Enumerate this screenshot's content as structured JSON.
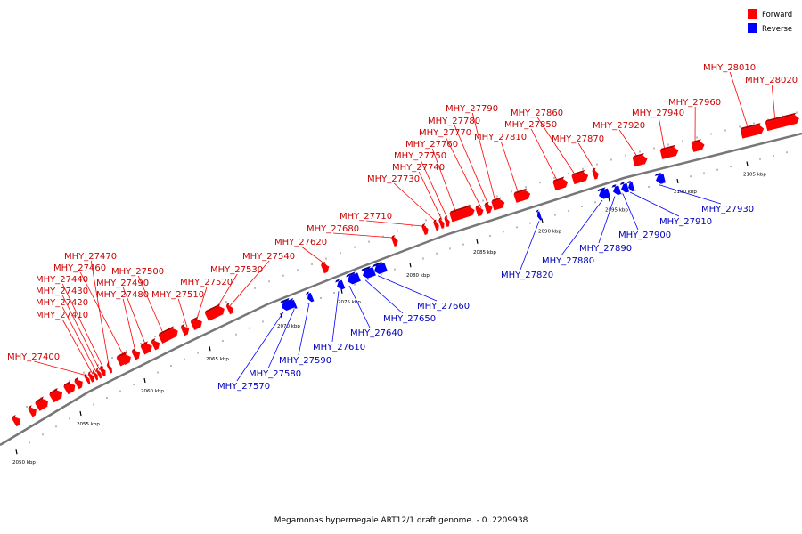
{
  "legend": [
    {
      "label": "Forward",
      "color": "#ff0000"
    },
    {
      "label": "Reverse",
      "color": "#0000ff"
    }
  ],
  "caption": "Megamonas hypermegale ART12/1 draft genome. - 0..2209938",
  "colors": {
    "forward": "#ff0000",
    "reverse": "#0000ff",
    "backbone": "#777777",
    "forward_label": "#cc0000",
    "reverse_label": "#0000bb"
  },
  "scale": {
    "unit": "kbp",
    "major_ticks": [
      2050,
      2055,
      2060,
      2065,
      2070,
      2075,
      2080,
      2085,
      2090,
      2095,
      2100,
      2105
    ]
  },
  "genes": [
    {
      "id": "MHY_27400",
      "strand": "forward"
    },
    {
      "id": "MHY_27410",
      "strand": "forward"
    },
    {
      "id": "MHY_27420",
      "strand": "forward"
    },
    {
      "id": "MHY_27430",
      "strand": "forward"
    },
    {
      "id": "MHY_27440",
      "strand": "forward"
    },
    {
      "id": "MHY_27460",
      "strand": "forward"
    },
    {
      "id": "MHY_27470",
      "strand": "forward"
    },
    {
      "id": "MHY_27480",
      "strand": "forward"
    },
    {
      "id": "MHY_27490",
      "strand": "forward"
    },
    {
      "id": "MHY_27500",
      "strand": "forward"
    },
    {
      "id": "MHY_27510",
      "strand": "forward"
    },
    {
      "id": "MHY_27520",
      "strand": "forward"
    },
    {
      "id": "MHY_27530",
      "strand": "forward"
    },
    {
      "id": "MHY_27540",
      "strand": "forward"
    },
    {
      "id": "MHY_27570",
      "strand": "reverse"
    },
    {
      "id": "MHY_27580",
      "strand": "reverse"
    },
    {
      "id": "MHY_27590",
      "strand": "reverse"
    },
    {
      "id": "MHY_27610",
      "strand": "reverse"
    },
    {
      "id": "MHY_27620",
      "strand": "forward"
    },
    {
      "id": "MHY_27640",
      "strand": "reverse"
    },
    {
      "id": "MHY_27650",
      "strand": "reverse"
    },
    {
      "id": "MHY_27660",
      "strand": "reverse"
    },
    {
      "id": "MHY_27680",
      "strand": "forward"
    },
    {
      "id": "MHY_27710",
      "strand": "forward"
    },
    {
      "id": "MHY_27730",
      "strand": "forward"
    },
    {
      "id": "MHY_27740",
      "strand": "forward"
    },
    {
      "id": "MHY_27750",
      "strand": "forward"
    },
    {
      "id": "MHY_27760",
      "strand": "forward"
    },
    {
      "id": "MHY_27770",
      "strand": "forward"
    },
    {
      "id": "MHY_27780",
      "strand": "forward"
    },
    {
      "id": "MHY_27790",
      "strand": "forward"
    },
    {
      "id": "MHY_27810",
      "strand": "forward"
    },
    {
      "id": "MHY_27820",
      "strand": "reverse"
    },
    {
      "id": "MHY_27850",
      "strand": "forward"
    },
    {
      "id": "MHY_27860",
      "strand": "forward"
    },
    {
      "id": "MHY_27870",
      "strand": "forward"
    },
    {
      "id": "MHY_27880",
      "strand": "reverse"
    },
    {
      "id": "MHY_27890",
      "strand": "reverse"
    },
    {
      "id": "MHY_27900",
      "strand": "reverse"
    },
    {
      "id": "MHY_27910",
      "strand": "reverse"
    },
    {
      "id": "MHY_27920",
      "strand": "forward"
    },
    {
      "id": "MHY_27930",
      "strand": "reverse"
    },
    {
      "id": "MHY_27940",
      "strand": "forward"
    },
    {
      "id": "MHY_27960",
      "strand": "forward"
    },
    {
      "id": "MHY_28010",
      "strand": "forward"
    },
    {
      "id": "MHY_28020",
      "strand": "forward"
    }
  ]
}
